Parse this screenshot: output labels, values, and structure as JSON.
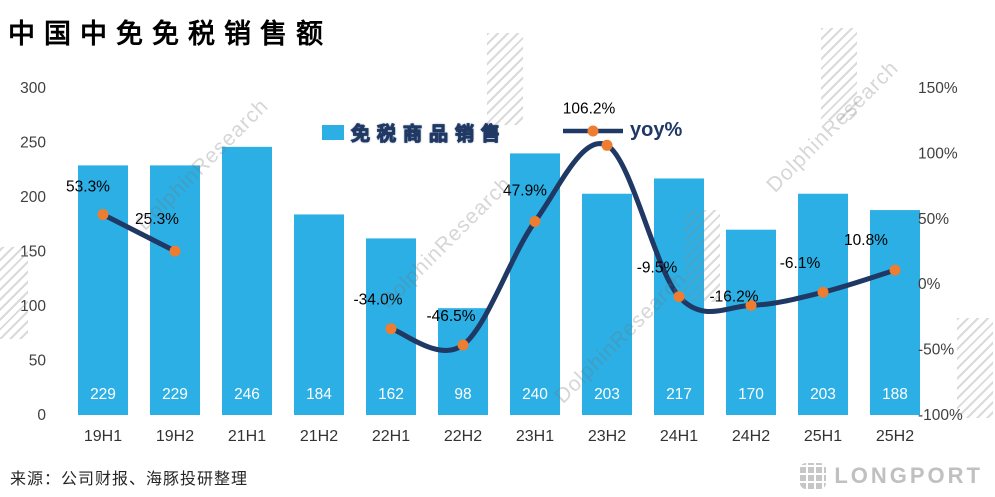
{
  "title": "中国中免免税销售额",
  "source": "来源：公司财报、海豚投研整理",
  "watermark": {
    "text": "DolphinResearch"
  },
  "logo": {
    "text": "LONGPORT"
  },
  "legend": {
    "bar_label": "免税商品销售",
    "line_label": "yoy%"
  },
  "colors": {
    "bar": "#2BAFE4",
    "line": "#1F3864",
    "marker": "#ED7D31",
    "bar_value_text": "#FFFFFF",
    "axis_text": "#404040",
    "x_label_text": "#333333",
    "point_label_text": "#000000"
  },
  "chart_data": {
    "type": "combo",
    "title": "中国中免免税销售额",
    "categories": [
      "19H1",
      "19H2",
      "21H1",
      "21H2",
      "22H1",
      "22H2",
      "23H1",
      "23H2",
      "24H1",
      "24H2",
      "25H1",
      "25H2"
    ],
    "series": [
      {
        "name": "免税商品销售",
        "type": "bar",
        "axis": "left",
        "values": [
          229,
          229,
          246,
          184,
          162,
          98,
          240,
          203,
          217,
          170,
          203,
          188
        ]
      },
      {
        "name": "yoy%",
        "type": "line",
        "axis": "right",
        "values": [
          53.3,
          25.3,
          null,
          null,
          -34.0,
          -46.5,
          47.9,
          106.2,
          -9.5,
          -16.2,
          -6.1,
          10.8
        ],
        "point_labels": [
          "53.3%",
          "25.3%",
          "",
          "",
          "-34.0%",
          "-46.5%",
          "47.9%",
          "106.2%",
          "-9.5%",
          "-16.2%",
          "-6.1%",
          "10.8%"
        ]
      }
    ],
    "left_axis": {
      "min": 0,
      "max": 300,
      "tick_values": [
        300,
        250,
        200,
        150,
        100,
        50,
        0
      ],
      "tick_labels": [
        "300",
        "250",
        "200",
        "150",
        "100",
        "50",
        "0"
      ]
    },
    "right_axis": {
      "min": -100,
      "max": 150,
      "tick_values": [
        150,
        100,
        50,
        0,
        -50,
        -100
      ],
      "tick_labels": [
        "150%",
        "100%",
        "50%",
        "0%",
        "-50%",
        "-100%"
      ]
    },
    "grid": false,
    "legend_position": "top-center"
  }
}
